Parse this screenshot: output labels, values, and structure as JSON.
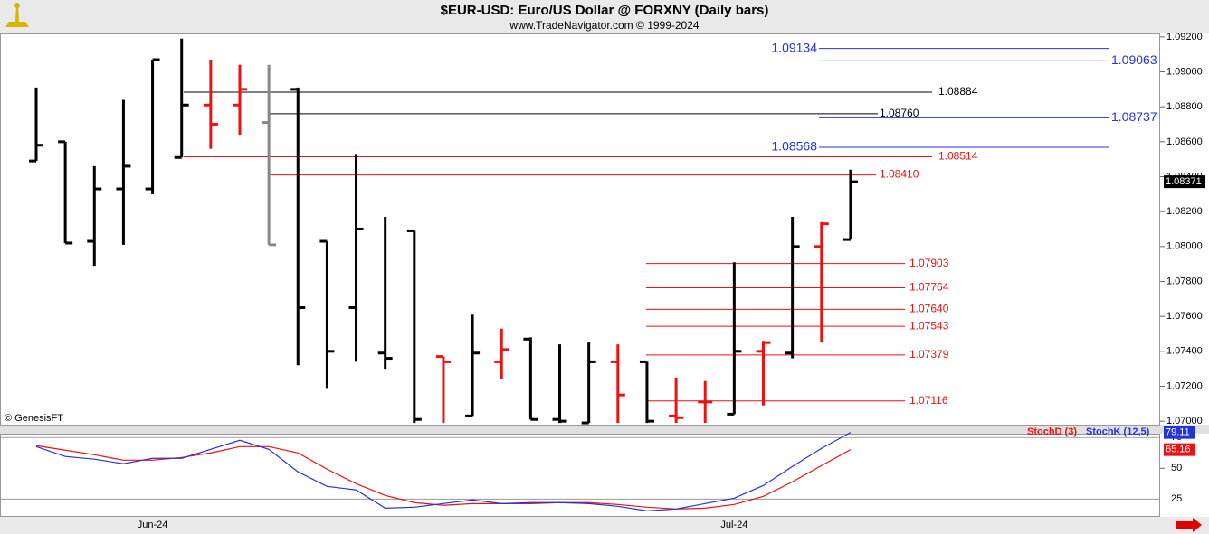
{
  "chart_data": [
    {
      "type": "ohlc",
      "title": "$EUR-USD:  Euro/US Dollar @ FORXNY  (Daily bars)",
      "subtitle": "www.TradeNavigator.com © 1999-2024",
      "watermark": "© GenesisFT",
      "categories": [
        null,
        null,
        null,
        null,
        "Jun-24",
        null,
        null,
        null,
        null,
        null,
        null,
        null,
        null,
        null,
        null,
        null,
        null,
        null,
        null,
        null,
        null,
        null,
        null,
        null,
        "Jul-24",
        null,
        null,
        null,
        null
      ],
      "open": [
        1.0849,
        1.086,
        1.0803,
        1.0833,
        1.0833,
        1.0851,
        1.0881,
        1.0881,
        1.0871,
        1.089,
        1.0803,
        1.0765,
        1.0739,
        1.0809,
        1.0737,
        1.0703,
        1.0734,
        1.0747,
        1.0701,
        1.0699,
        1.0734,
        1.0734,
        1.0703,
        1.0711,
        1.0704,
        1.074,
        1.0739,
        1.08,
        1.0804
      ],
      "high": [
        1.0891,
        1.086,
        1.0846,
        1.0884,
        1.0907,
        1.0919,
        1.0907,
        1.0904,
        1.0904,
        1.0891,
        1.0803,
        1.0853,
        1.0817,
        1.0809,
        1.0737,
        1.0761,
        1.0753,
        1.0748,
        1.0744,
        1.0745,
        1.0744,
        1.0734,
        1.0725,
        1.0723,
        1.0791,
        1.0746,
        1.0817,
        1.0814,
        1.0844
      ],
      "low": [
        1.0849,
        1.0802,
        1.0789,
        1.0801,
        1.083,
        1.0851,
        1.0856,
        1.0864,
        1.0801,
        1.0732,
        1.0719,
        1.0734,
        1.073,
        1.0699,
        1.0699,
        1.0703,
        1.0724,
        1.0701,
        1.0699,
        1.0699,
        1.0699,
        1.0699,
        1.0699,
        1.0699,
        1.0704,
        1.0709,
        1.0736,
        1.0745,
        1.0804
      ],
      "close": [
        1.0858,
        1.0802,
        1.0833,
        1.0846,
        1.0907,
        1.0881,
        1.087,
        1.089,
        1.0801,
        1.0765,
        1.074,
        1.081,
        1.0736,
        1.0701,
        1.0734,
        1.0739,
        1.0741,
        1.0701,
        1.07,
        1.0734,
        1.0715,
        1.07,
        1.0702,
        1.0711,
        1.074,
        1.0745,
        1.08,
        1.0813,
        1.08371
      ],
      "colors": [
        "#000000",
        "#000000",
        "#000000",
        "#000000",
        "#000000",
        "#000000",
        "#ee1111",
        "#ee1111",
        "#888888",
        "#000000",
        "#000000",
        "#000000",
        "#000000",
        "#000000",
        "#ee1111",
        "#000000",
        "#ee1111",
        "#000000",
        "#000000",
        "#000000",
        "#ee1111",
        "#000000",
        "#ee1111",
        "#ee1111",
        "#000000",
        "#ee1111",
        "#000000",
        "#ee1111",
        "#000000"
      ],
      "levels": [
        {
          "value": 1.09134,
          "label": "1.09134",
          "color": "#2233dd"
        },
        {
          "value": 1.09063,
          "label": "1.09063",
          "color": "#2233dd"
        },
        {
          "value": 1.08884,
          "label": "1.08884",
          "color": "#000000"
        },
        {
          "value": 1.0876,
          "label": "1.08760",
          "color": "#000000"
        },
        {
          "value": 1.08737,
          "label": "1.08737",
          "color": "#2233dd"
        },
        {
          "value": 1.08568,
          "label": "1.08568",
          "color": "#2233dd"
        },
        {
          "value": 1.08514,
          "label": "1.08514",
          "color": "#ee1111"
        },
        {
          "value": 1.0841,
          "label": "1.08410",
          "color": "#ee1111"
        },
        {
          "value": 1.07903,
          "label": "1.07903",
          "color": "#ee1111"
        },
        {
          "value": 1.07764,
          "label": "1.07764",
          "color": "#ee1111"
        },
        {
          "value": 1.0764,
          "label": "1.07640",
          "color": "#ee1111"
        },
        {
          "value": 1.07543,
          "label": "1.07543",
          "color": "#ee1111"
        },
        {
          "value": 1.07379,
          "label": "1.07379",
          "color": "#ee1111"
        },
        {
          "value": 1.07116,
          "label": "1.07116",
          "color": "#ee1111"
        }
      ],
      "ylim": [
        1.0698,
        1.0922
      ],
      "yticks": [
        {
          "value": 1.07,
          "label": "1.07000"
        },
        {
          "value": 1.072,
          "label": "1.07200"
        },
        {
          "value": 1.074,
          "label": "1.07400"
        },
        {
          "value": 1.076,
          "label": "1.07600"
        },
        {
          "value": 1.078,
          "label": "1.07800"
        },
        {
          "value": 1.08,
          "label": "1.08000"
        },
        {
          "value": 1.082,
          "label": "1.08200"
        },
        {
          "value": 1.084,
          "label": "1.08400"
        },
        {
          "value": 1.086,
          "label": "1.08600"
        },
        {
          "value": 1.088,
          "label": "1.08800"
        },
        {
          "value": 1.09,
          "label": "1.09000"
        },
        {
          "value": 1.092,
          "label": "1.09200"
        }
      ]
    },
    {
      "type": "line",
      "series": [
        {
          "name": "StochD (3)",
          "color": "#ee1111",
          "values": [
            68.4,
            64.7,
            61.0,
            56.6,
            56.6,
            58.8,
            62.5,
            67.6,
            67.6,
            62.5,
            49.3,
            37.5,
            27.9,
            22.1,
            19.9,
            21.3,
            21.3,
            21.3,
            22.1,
            22.1,
            20.6,
            18.4,
            16.9,
            17.6,
            20.6,
            27.2,
            39.0,
            52.2,
            65.16
          ]
        },
        {
          "name": "StochK (12,5)",
          "color": "#2233dd",
          "values": [
            67.6,
            59.6,
            57.4,
            53.7,
            58.1,
            58.1,
            65.4,
            72.8,
            65.4,
            47.1,
            35.3,
            32.4,
            17.6,
            18.4,
            21.3,
            24.3,
            21.3,
            22.1,
            22.1,
            21.3,
            19.1,
            15.4,
            16.9,
            21.3,
            25.7,
            36.0,
            51.5,
            66.2,
            79.11
          ]
        }
      ],
      "ylim": [
        12,
        84
      ],
      "yticks": [
        25,
        50,
        75
      ]
    }
  ]
}
